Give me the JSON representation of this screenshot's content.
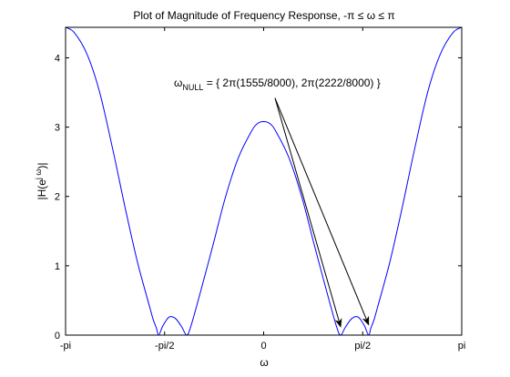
{
  "chart_data": {
    "type": "line",
    "title": "Plot of Magnitude of Frequency Response, -π  ≤ ω ≤ π",
    "xlabel": "ω",
    "ylabel": "|H(e^jω)|",
    "ylabel_parts": {
      "base": "|H(e",
      "sup": "j ω",
      "tail": ")|"
    },
    "xlim": [
      -3.14159265,
      3.14159265
    ],
    "ylim": [
      0,
      4.44
    ],
    "xticks": [
      {
        "value": -3.14159265,
        "label": "-pi"
      },
      {
        "value": -1.5707963,
        "label": "-pi/2"
      },
      {
        "value": 0,
        "label": "0"
      },
      {
        "value": 1.5707963,
        "label": "pi/2"
      },
      {
        "value": 3.14159265,
        "label": "pi"
      }
    ],
    "yticks": [
      {
        "value": 0,
        "label": "0"
      },
      {
        "value": 1,
        "label": "1"
      },
      {
        "value": 2,
        "label": "2"
      },
      {
        "value": 3,
        "label": "3"
      },
      {
        "value": 4,
        "label": "4"
      }
    ],
    "grid": false,
    "series": [
      {
        "color": "#0000ff",
        "x": [
          -3.1416,
          -3.0,
          -2.8,
          -2.6,
          -2.4,
          -2.2,
          -2.0,
          -1.8,
          -1.75,
          -1.7,
          -1.665,
          -1.6,
          -1.5,
          -1.4,
          -1.3,
          -1.221,
          -1.15,
          -1.0,
          -0.8,
          -0.6,
          -0.4,
          -0.2,
          -0.1,
          0.0,
          0.1,
          0.2,
          0.4,
          0.6,
          0.8,
          1.0,
          1.15,
          1.221,
          1.3,
          1.4,
          1.5,
          1.6,
          1.665,
          1.7,
          1.75,
          1.8,
          2.0,
          2.2,
          2.4,
          2.6,
          2.8,
          3.0,
          3.1416
        ],
        "y": [
          4.44,
          4.36,
          4.05,
          3.5,
          2.71,
          1.85,
          1.05,
          0.38,
          0.22,
          0.1,
          0.0,
          0.13,
          0.26,
          0.24,
          0.12,
          0.0,
          0.14,
          0.63,
          1.31,
          2.01,
          2.56,
          2.93,
          3.05,
          3.08,
          3.05,
          2.93,
          2.56,
          2.01,
          1.31,
          0.63,
          0.14,
          0.0,
          0.12,
          0.24,
          0.26,
          0.13,
          0.0,
          0.1,
          0.22,
          0.38,
          1.05,
          1.85,
          2.71,
          3.5,
          4.05,
          4.36,
          4.44
        ]
      }
    ],
    "annotation": {
      "omega": "ω",
      "subscript": "NULL",
      "text": " = { 2π(1555/8000), 2π(2222/8000) }",
      "arrow_from": [
        0.18,
        3.42
      ],
      "arrow_to": [
        [
          1.221,
          0.12
        ],
        [
          1.665,
          0.15
        ]
      ]
    }
  }
}
